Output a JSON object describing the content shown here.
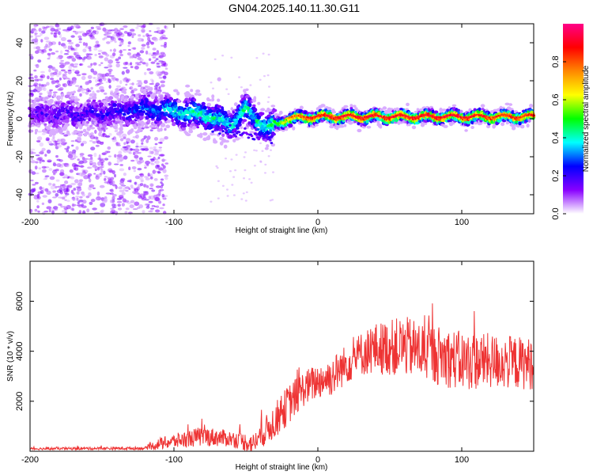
{
  "figure_title": "GN04.2025.140.11.30.G11",
  "chart_data": [
    {
      "type": "heatmap",
      "title": "GN04.2025.140.11.30.G11",
      "xlabel": "Height of straight line (km)",
      "ylabel": "Frequency (Hz)",
      "xlim": [
        -200,
        150
      ],
      "ylim": [
        -50,
        50
      ],
      "x_ticks": [
        -200,
        -100,
        0,
        100
      ],
      "y_ticks": [
        -40,
        -20,
        0,
        20,
        40
      ],
      "colorbar": {
        "label": "Normalized spectral amplitude",
        "range": [
          0,
          1
        ],
        "ticks": [
          0.0,
          0.2,
          0.4,
          0.6,
          0.8
        ],
        "colormap": [
          "#ffffff",
          "#8800ff",
          "#0000ff",
          "#00ffff",
          "#00ff00",
          "#ffff00",
          "#ff8800",
          "#ff0000",
          "#ff0088"
        ]
      },
      "ridge": {
        "description_points_x": [
          -200,
          -150,
          -115,
          -100,
          -80,
          -60,
          -50,
          -35,
          -20,
          0,
          50,
          100,
          150
        ],
        "center_freq": [
          2,
          3,
          5,
          4,
          2,
          -3,
          5,
          -5,
          0,
          1,
          1,
          1,
          1
        ],
        "peak_amplitude": [
          0.15,
          0.2,
          0.3,
          0.4,
          0.45,
          0.4,
          0.45,
          0.4,
          0.75,
          0.9,
          0.9,
          0.9,
          0.85
        ]
      },
      "grid": false
    },
    {
      "type": "line",
      "xlabel": "Height of straight line (km)",
      "ylabel": "SNR (10 * v/v)",
      "xlim": [
        -200,
        150
      ],
      "ylim": [
        0,
        7600
      ],
      "x_ticks": [
        -200,
        -100,
        0,
        100
      ],
      "y_ticks": [
        2000,
        4000,
        6000
      ],
      "series_color": "#ee3333",
      "trend_x": [
        -200,
        -120,
        -110,
        -80,
        -60,
        -45,
        -30,
        -20,
        -10,
        0,
        10,
        20,
        30,
        40,
        60,
        80,
        100,
        120,
        150
      ],
      "trend_y": [
        100,
        120,
        300,
        600,
        500,
        300,
        1200,
        1900,
        2500,
        2800,
        3000,
        3500,
        3900,
        4100,
        4200,
        3900,
        3600,
        3600,
        3500
      ],
      "trend_noise": [
        60,
        80,
        300,
        500,
        400,
        500,
        900,
        1000,
        900,
        900,
        1000,
        1000,
        1100,
        1300,
        1500,
        1500,
        1500,
        1400,
        1300
      ],
      "grid": false
    }
  ]
}
